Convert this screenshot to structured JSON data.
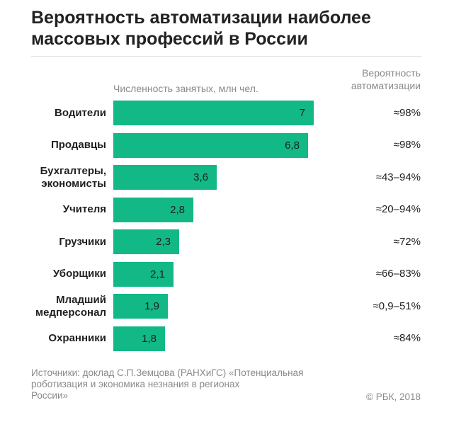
{
  "title_lines": [
    "Вероятность автоматизации наиболее",
    "массовых профессий в России"
  ],
  "header_employed": "Численность занятых, млн чел.",
  "header_probability_lines": [
    "Вероятность",
    "автоматизации"
  ],
  "source_lines": [
    "Источники: доклад С.П.Земцова (РАНХиГС) «Потенциальная",
    "роботизация и экономика незнания в регионах",
    "России»"
  ],
  "copyright": "© РБК, 2018",
  "colors": {
    "bar": "#12b886",
    "muted_text": "#8a8a8a",
    "text": "#1f1f1f"
  },
  "chart_data": {
    "type": "bar",
    "orientation": "horizontal",
    "categories": [
      [
        "Водители"
      ],
      [
        "Продавцы"
      ],
      [
        "Бухгалтеры,",
        "экономисты"
      ],
      [
        "Учителя"
      ],
      [
        "Грузчики"
      ],
      [
        "Уборщики"
      ],
      [
        "Младший",
        "медперсонал"
      ],
      [
        "Охранники"
      ]
    ],
    "values": [
      7,
      6.8,
      3.6,
      2.8,
      2.3,
      2.1,
      1.9,
      1.8
    ],
    "value_labels": [
      "7",
      "6,8",
      "3,6",
      "2,8",
      "2,3",
      "2,1",
      "1,9",
      "1,8"
    ],
    "automation_probability": [
      "≈98%",
      "≈98%",
      "≈43–94%",
      "≈20–94%",
      "≈72%",
      "≈66–83%",
      "≈0,9–51%",
      "≈84%"
    ],
    "xlim": [
      0,
      7
    ],
    "grid": false,
    "legend": "none"
  }
}
